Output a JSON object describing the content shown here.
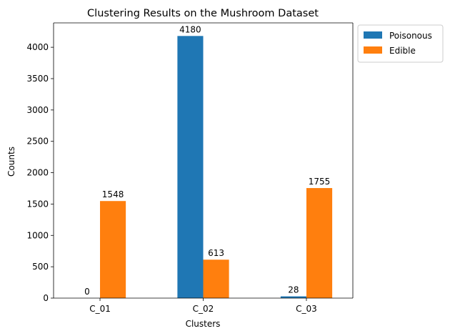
{
  "chart_data": {
    "type": "bar",
    "title": "Clustering Results on the Mushroom Dataset",
    "xlabel": "Clusters",
    "ylabel": "Counts",
    "categories": [
      "C_01",
      "C_02",
      "C_03"
    ],
    "series": [
      {
        "name": "Poisonous",
        "color": "#1f77b4",
        "values": [
          0,
          4180,
          28
        ]
      },
      {
        "name": "Edible",
        "color": "#ff7f0e",
        "values": [
          1548,
          613,
          1755
        ]
      }
    ],
    "ylim": [
      0,
      4389
    ],
    "yticks": [
      0,
      500,
      1000,
      1500,
      2000,
      2500,
      3000,
      3500,
      4000
    ],
    "grid": false,
    "legend_position": "outside top-right"
  }
}
